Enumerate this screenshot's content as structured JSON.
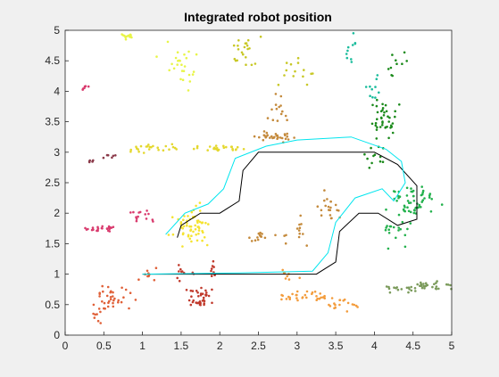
{
  "chart_data": {
    "type": "scatter",
    "title": "Integrated robot position",
    "xlabel": "",
    "ylabel": "",
    "xlim": [
      0,
      5
    ],
    "ylim": [
      0,
      5
    ],
    "grid": false,
    "xticks": [
      "0",
      "0.5",
      "1",
      "1.5",
      "2",
      "2.5",
      "3",
      "3.5",
      "4",
      "4.5",
      "5"
    ],
    "yticks": [
      "0",
      "0.5",
      "1",
      "1.5",
      "2",
      "2.5",
      "3",
      "3.5",
      "4",
      "4.5",
      "5"
    ],
    "reference_path": {
      "color": "#000000",
      "points": [
        [
          1.0,
          1.0
        ],
        [
          2.25,
          1.0
        ],
        [
          3.25,
          1.0
        ],
        [
          3.5,
          1.2
        ],
        [
          3.55,
          1.7
        ],
        [
          3.8,
          2.0
        ],
        [
          4.05,
          2.0
        ],
        [
          4.3,
          1.8
        ],
        [
          4.55,
          1.9
        ],
        [
          4.55,
          2.45
        ],
        [
          4.3,
          2.8
        ],
        [
          4.0,
          3.0
        ],
        [
          3.0,
          3.0
        ],
        [
          2.5,
          3.0
        ],
        [
          2.3,
          2.7
        ],
        [
          2.25,
          2.2
        ],
        [
          2.0,
          2.0
        ],
        [
          1.75,
          2.0
        ],
        [
          1.5,
          1.8
        ],
        [
          1.45,
          1.6
        ]
      ]
    },
    "estimated_path": {
      "color": "#00e5ee",
      "points": [
        [
          1.0,
          1.0
        ],
        [
          2.25,
          1.02
        ],
        [
          3.2,
          1.05
        ],
        [
          3.4,
          1.35
        ],
        [
          3.5,
          1.85
        ],
        [
          3.75,
          2.25
        ],
        [
          4.1,
          2.4
        ],
        [
          4.25,
          2.2
        ],
        [
          4.4,
          2.5
        ],
        [
          4.35,
          2.85
        ],
        [
          4.15,
          3.05
        ],
        [
          3.7,
          3.25
        ],
        [
          3.0,
          3.2
        ],
        [
          2.6,
          3.1
        ],
        [
          2.2,
          2.9
        ],
        [
          2.05,
          2.4
        ],
        [
          1.85,
          2.15
        ],
        [
          1.55,
          2.0
        ],
        [
          1.3,
          1.65
        ]
      ]
    },
    "series": [
      {
        "color": "#e8f548",
        "clusters": [
          [
            0.8,
            4.9,
            0.08,
            0.05,
            14
          ],
          [
            1.5,
            4.4,
            0.2,
            0.3,
            26
          ]
        ]
      },
      {
        "color": "#e4d82e",
        "clusters": [
          [
            1.3,
            3.08,
            0.3,
            0.04,
            18
          ],
          [
            2.0,
            3.06,
            0.25,
            0.04,
            24
          ],
          [
            0.9,
            3.05,
            0.15,
            0.04,
            8
          ]
        ]
      },
      {
        "color": "#f5e330",
        "clusters": [
          [
            1.65,
            1.8,
            0.2,
            0.25,
            60
          ]
        ]
      },
      {
        "color": "#c8c826",
        "clusters": [
          [
            2.4,
            4.6,
            0.2,
            0.2,
            22
          ],
          [
            2.95,
            4.3,
            0.2,
            0.2,
            14
          ]
        ]
      },
      {
        "color": "#c48a3c",
        "clusters": [
          [
            2.75,
            3.25,
            0.2,
            0.06,
            30
          ],
          [
            2.75,
            3.7,
            0.15,
            0.2,
            14
          ],
          [
            3.4,
            2.1,
            0.15,
            0.2,
            20
          ],
          [
            2.6,
            1.6,
            0.2,
            0.08,
            16
          ],
          [
            3.05,
            1.7,
            0.1,
            0.2,
            10
          ]
        ]
      },
      {
        "color": "#1abc9c",
        "clusters": [
          [
            3.7,
            4.7,
            0.08,
            0.2,
            10
          ],
          [
            3.95,
            4.05,
            0.1,
            0.2,
            10
          ]
        ]
      },
      {
        "color": "#1b8a1b",
        "clusters": [
          [
            4.1,
            3.5,
            0.15,
            0.3,
            40
          ],
          [
            4.2,
            4.4,
            0.2,
            0.25,
            10
          ],
          [
            4.05,
            2.9,
            0.15,
            0.2,
            12
          ]
        ]
      },
      {
        "color": "#22b14c",
        "clusters": [
          [
            4.5,
            2.2,
            0.25,
            0.2,
            55
          ],
          [
            4.3,
            1.7,
            0.2,
            0.2,
            18
          ]
        ]
      },
      {
        "color": "#7a9a5a",
        "clusters": [
          [
            4.65,
            0.8,
            0.25,
            0.07,
            34
          ],
          [
            4.3,
            0.75,
            0.2,
            0.05,
            10
          ]
        ]
      },
      {
        "color": "#f39c3c",
        "clusters": [
          [
            3.1,
            0.65,
            0.2,
            0.08,
            30
          ],
          [
            3.6,
            0.5,
            0.2,
            0.1,
            18
          ],
          [
            2.9,
            0.95,
            0.1,
            0.15,
            8
          ]
        ]
      },
      {
        "color": "#d93b6e",
        "clusters": [
          [
            0.5,
            1.75,
            0.2,
            0.05,
            24
          ],
          [
            1.0,
            1.95,
            0.15,
            0.12,
            14
          ],
          [
            0.25,
            4.05,
            0.06,
            0.04,
            6
          ]
        ]
      },
      {
        "color": "#c0392b",
        "clusters": [
          [
            1.75,
            0.6,
            0.15,
            0.15,
            36
          ],
          [
            1.55,
            1.0,
            0.1,
            0.15,
            10
          ],
          [
            1.9,
            1.1,
            0.1,
            0.15,
            8
          ]
        ]
      },
      {
        "color": "#e06038",
        "clusters": [
          [
            0.6,
            0.6,
            0.2,
            0.2,
            36
          ],
          [
            1.05,
            1.0,
            0.15,
            0.1,
            10
          ],
          [
            0.4,
            0.3,
            0.1,
            0.1,
            6
          ]
        ]
      },
      {
        "color": "#8b3a4a",
        "clusters": [
          [
            0.35,
            2.85,
            0.05,
            0.04,
            6
          ],
          [
            0.6,
            2.95,
            0.1,
            0.04,
            6
          ]
        ]
      }
    ]
  }
}
